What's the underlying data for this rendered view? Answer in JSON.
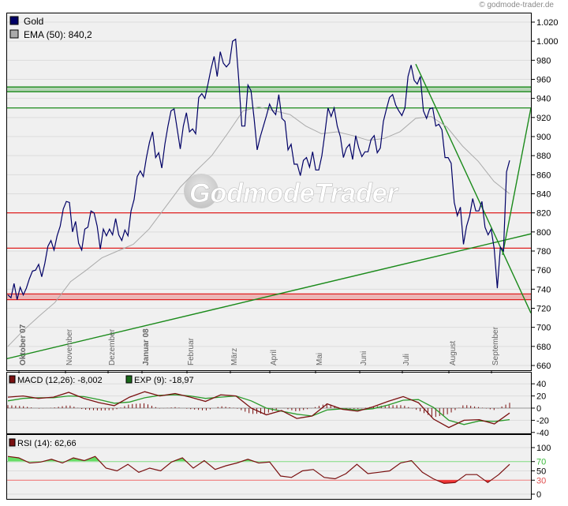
{
  "credit": "© godmode-trader.de",
  "chart_data": [
    {
      "type": "line",
      "panel": "price",
      "legend": [
        {
          "label": "Gold",
          "color": "#000066"
        },
        {
          "label": "EMA (50): 840,2",
          "color": "#aaaaaa"
        }
      ],
      "watermark": "GodmodeTrader",
      "xlabels": [
        {
          "label": "Oktober 07",
          "bold": true
        },
        {
          "label": "November",
          "bold": false
        },
        {
          "label": "Dezember",
          "bold": false
        },
        {
          "label": "Januar 08",
          "bold": true
        },
        {
          "label": "Februar",
          "bold": false
        },
        {
          "label": "März",
          "bold": false
        },
        {
          "label": "April",
          "bold": false
        },
        {
          "label": "Mai",
          "bold": false
        },
        {
          "label": "Juni",
          "bold": false
        },
        {
          "label": "Juli",
          "bold": false
        },
        {
          "label": "August",
          "bold": false
        },
        {
          "label": "September",
          "bold": false
        }
      ],
      "yticks": [
        "660",
        "680",
        "700",
        "720",
        "740",
        "760",
        "780",
        "800",
        "820",
        "840",
        "860",
        "880",
        "900",
        "920",
        "940",
        "960",
        "980",
        "1.000",
        "1.020"
      ],
      "ylim": [
        660,
        1030
      ],
      "grid": true,
      "series": [
        {
          "name": "Gold",
          "color": "#000066",
          "values": [
            734,
            731,
            746,
            729,
            742,
            734,
            741,
            751,
            759,
            760,
            766,
            753,
            767,
            785,
            791,
            781,
            796,
            806,
            824,
            832,
            831,
            800,
            811,
            788,
            781,
            803,
            805,
            822,
            820,
            806,
            782,
            803,
            796,
            803,
            797,
            814,
            797,
            791,
            802,
            796,
            822,
            834,
            858,
            864,
            858,
            878,
            894,
            905,
            878,
            883,
            867,
            892,
            911,
            927,
            929,
            908,
            887,
            911,
            925,
            905,
            908,
            903,
            941,
            945,
            940,
            955,
            971,
            984,
            963,
            989,
            977,
            973,
            977,
            1000,
            1002,
            960,
            911,
            911,
            954,
            948,
            919,
            886,
            900,
            911,
            922,
            934,
            927,
            923,
            944,
            919,
            916,
            886,
            892,
            871,
            871,
            859,
            875,
            878,
            868,
            884,
            865,
            865,
            880,
            904,
            930,
            921,
            930,
            911,
            900,
            878,
            888,
            892,
            876,
            901,
            888,
            879,
            884,
            884,
            897,
            901,
            883,
            888,
            916,
            929,
            941,
            944,
            933,
            927,
            922,
            930,
            963,
            975,
            959,
            955,
            963,
            927,
            919,
            929,
            930,
            911,
            913,
            907,
            878,
            878,
            872,
            831,
            817,
            826,
            787,
            806,
            817,
            835,
            822,
            822,
            832,
            805,
            797,
            803,
            782,
            741,
            784,
            780,
            863,
            875
          ]
        },
        {
          "name": "EMA (50)",
          "color": "#aaaaaa",
          "values": [
            680,
            697,
            712,
            726,
            748,
            760,
            773,
            780,
            787,
            803,
            825,
            847,
            864,
            880,
            903,
            927,
            931,
            927,
            923,
            911,
            903,
            905,
            901,
            896,
            898,
            905,
            919,
            921,
            910,
            890,
            874,
            853,
            840
          ]
        }
      ],
      "levels": [
        {
          "kind": "band",
          "from": 947,
          "to": 952,
          "color": "#1a8a1a"
        },
        {
          "kind": "line",
          "value": 930,
          "color": "#1a8a1a"
        },
        {
          "kind": "line",
          "value": 820,
          "color": "#e02020"
        },
        {
          "kind": "line",
          "value": 783,
          "color": "#e02020"
        },
        {
          "kind": "band",
          "from": 729,
          "to": 735,
          "color": "#e02020"
        }
      ],
      "trendline_color": "#1a8a1a"
    },
    {
      "type": "line",
      "panel": "macd",
      "legend": [
        {
          "label": "MACD (12,26): -8,002",
          "color": "#7a1010"
        },
        {
          "label": "EXP (9): -18,97",
          "color": "#1a6a1a"
        }
      ],
      "yticks": [
        "40",
        "20",
        "0",
        "-20",
        "-40"
      ],
      "ylim": [
        -45,
        50
      ],
      "series": [
        {
          "name": "MACD (12,26)",
          "color": "#7a1010",
          "values": [
            18,
            20,
            16,
            18,
            26,
            16,
            9,
            4,
            18,
            27,
            20,
            24,
            18,
            11,
            22,
            20,
            0,
            -11,
            -4,
            -17,
            -13,
            7,
            -2,
            -5,
            2,
            11,
            19,
            9,
            -18,
            -32,
            -20,
            -19,
            -26,
            -8
          ]
        },
        {
          "name": "EXP (9)",
          "color": "#2a9a2a",
          "values": [
            12,
            16,
            17,
            17,
            20,
            19,
            14,
            8,
            10,
            17,
            21,
            22,
            20,
            16,
            18,
            20,
            12,
            0,
            -5,
            -10,
            -13,
            -3,
            -1,
            -3,
            -1,
            5,
            13,
            14,
            1,
            -20,
            -27,
            -21,
            -22,
            -19
          ]
        }
      ]
    },
    {
      "type": "line",
      "panel": "rsi",
      "legend": [
        {
          "label": "RSI (14): 62,66",
          "color": "#7a1010"
        }
      ],
      "yticks": [
        "100",
        "70",
        "50",
        "30",
        "0"
      ],
      "ylim": [
        0,
        100
      ],
      "overbought": 70,
      "oversold": 30,
      "series": [
        {
          "name": "RSI (14)",
          "color": "#7a1010",
          "values": [
            81,
            78,
            67,
            69,
            75,
            67,
            78,
            72,
            81,
            56,
            50,
            64,
            47,
            56,
            50,
            69,
            78,
            56,
            72,
            53,
            61,
            67,
            75,
            67,
            69,
            39,
            36,
            50,
            53,
            36,
            33,
            44,
            64,
            44,
            47,
            50,
            67,
            72,
            47,
            33,
            23,
            25,
            42,
            42,
            25,
            42,
            64
          ]
        }
      ]
    }
  ]
}
